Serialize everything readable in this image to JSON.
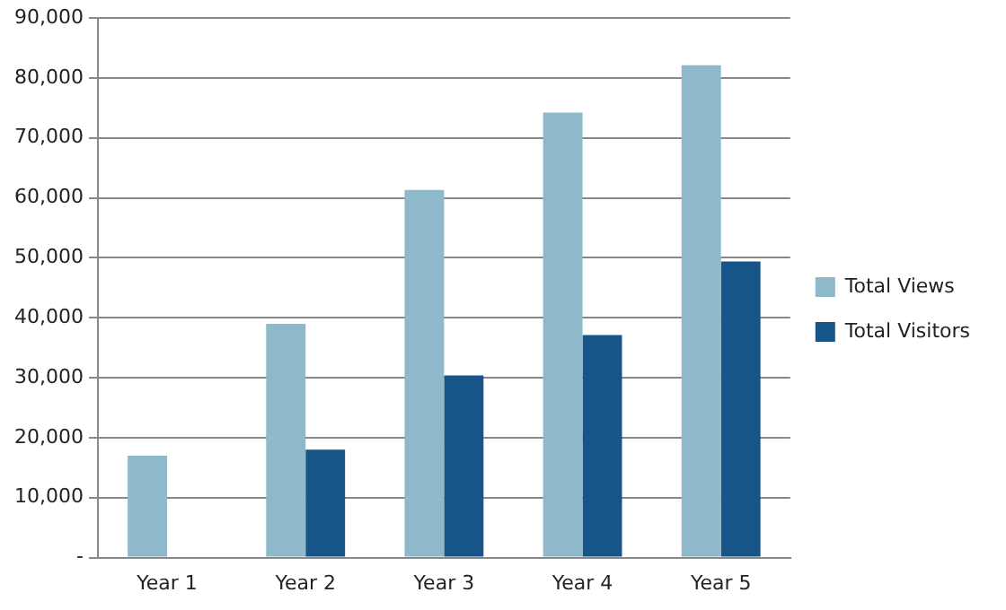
{
  "chart_data": {
    "type": "bar",
    "categories": [
      "Year 1",
      "Year 2",
      "Year 3",
      "Year 4",
      "Year 5"
    ],
    "series": [
      {
        "name": "Total Views",
        "color": "#8db9cb",
        "values": [
          17000,
          39000,
          61300,
          74200,
          82100
        ]
      },
      {
        "name": "Total Visitors",
        "color": "#175589",
        "values": [
          0,
          18000,
          30400,
          37100,
          49400
        ]
      }
    ],
    "ylim": [
      0,
      90000
    ],
    "yticks": [
      {
        "value": 0,
        "label": "-"
      },
      {
        "value": 10000,
        "label": "10,000"
      },
      {
        "value": 20000,
        "label": "20,000"
      },
      {
        "value": 30000,
        "label": "30,000"
      },
      {
        "value": 40000,
        "label": "40,000"
      },
      {
        "value": 50000,
        "label": "50,000"
      },
      {
        "value": 60000,
        "label": "60,000"
      },
      {
        "value": 70000,
        "label": "70,000"
      },
      {
        "value": 80000,
        "label": "80,000"
      },
      {
        "value": 90000,
        "label": "90,000"
      }
    ],
    "grid": "y",
    "legend": "right"
  }
}
